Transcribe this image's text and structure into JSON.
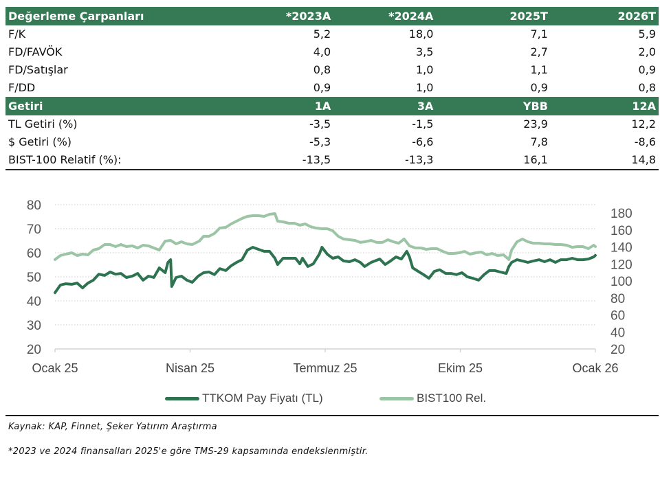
{
  "table": {
    "clipped_top_row": [
      "",
      "",
      "",
      ""
    ],
    "valuation_header": [
      "Değerleme Çarpanları",
      "*2023A",
      "*2024A",
      "2025T",
      "2026T"
    ],
    "valuation_rows": [
      [
        "F/K",
        "5,2",
        "18,0",
        "7,1",
        "5,9"
      ],
      [
        "FD/FAVÖK",
        "4,0",
        "3,5",
        "2,7",
        "2,0"
      ],
      [
        "FD/Satışlar",
        "0,8",
        "1,0",
        "1,1",
        "0,9"
      ],
      [
        "F/DD",
        "0,9",
        "1,0",
        "0,9",
        "0,8"
      ]
    ],
    "return_header": [
      "Getiri",
      "1A",
      "3A",
      "YBB",
      "12A"
    ],
    "return_rows": [
      [
        "TL Getiri (%)",
        "-3,5",
        "-1,5",
        "23,9",
        "12,2"
      ],
      [
        "$ Getiri (%)",
        "-5,3",
        "-6,6",
        "7,8",
        "-8,6"
      ],
      [
        "BIST-100 Relatif (%):",
        "-13,5",
        "-13,3",
        "16,1",
        "14,8"
      ]
    ],
    "header_color": "#357a55"
  },
  "chart_data": {
    "type": "line",
    "title": "",
    "xlabel": "",
    "ylabel": "",
    "x_tick_labels": [
      "Ocak 25",
      "Nisan 25",
      "Temmuz 25",
      "Ekim 25",
      "Ocak 26"
    ],
    "x_tick_positions": [
      0,
      0.25,
      0.5,
      0.75,
      1.0
    ],
    "x_range": [
      0,
      1.0
    ],
    "y_left": {
      "ticks": [
        20,
        30,
        40,
        50,
        60,
        70,
        80
      ],
      "range": [
        20,
        80
      ]
    },
    "y_right": {
      "ticks": [
        20,
        40,
        60,
        80,
        100,
        120,
        140,
        160,
        180
      ],
      "range": [
        20,
        180
      ]
    },
    "grid": true,
    "legend_position": "bottom",
    "series": [
      {
        "name": "TTKOM Pay Fiyatı (TL)",
        "axis": "left",
        "color": "#2e7350",
        "x": [
          0,
          0.01,
          0.02,
          0.031,
          0.041,
          0.051,
          0.061,
          0.071,
          0.081,
          0.092,
          0.102,
          0.112,
          0.122,
          0.132,
          0.143,
          0.153,
          0.163,
          0.173,
          0.183,
          0.193,
          0.204,
          0.209,
          0.214,
          0.216,
          0.224,
          0.234,
          0.244,
          0.254,
          0.265,
          0.275,
          0.285,
          0.295,
          0.305,
          0.316,
          0.326,
          0.336,
          0.346,
          0.356,
          0.366,
          0.377,
          0.387,
          0.397,
          0.407,
          0.412,
          0.422,
          0.433,
          0.445,
          0.453,
          0.458,
          0.468,
          0.478,
          0.489,
          0.494,
          0.504,
          0.514,
          0.524,
          0.534,
          0.545,
          0.555,
          0.565,
          0.573,
          0.585,
          0.601,
          0.611,
          0.621,
          0.631,
          0.641,
          0.651,
          0.656,
          0.662,
          0.672,
          0.682,
          0.692,
          0.702,
          0.712,
          0.723,
          0.733,
          0.743,
          0.753,
          0.763,
          0.773,
          0.784,
          0.794,
          0.804,
          0.814,
          0.824,
          0.835,
          0.84,
          0.845,
          0.855,
          0.865,
          0.875,
          0.885,
          0.896,
          0.906,
          0.916,
          0.926,
          0.936,
          0.947,
          0.957,
          0.967,
          0.977,
          0.987,
          0.997,
          1.0
        ],
        "values": [
          43.4,
          46.6,
          47.1,
          46.9,
          47.4,
          45.4,
          47.4,
          48.6,
          51.1,
          50.6,
          52.0,
          51.1,
          51.4,
          49.7,
          50.3,
          51.4,
          48.6,
          50.3,
          49.7,
          53.7,
          51.7,
          56.0,
          57.1,
          46.0,
          49.7,
          50.3,
          48.6,
          47.7,
          50.3,
          51.7,
          52.0,
          50.9,
          53.4,
          52.6,
          54.6,
          56.0,
          57.1,
          61.1,
          62.3,
          61.4,
          60.6,
          60.6,
          57.7,
          55.1,
          57.7,
          57.7,
          57.7,
          55.4,
          57.7,
          54.3,
          55.4,
          59.4,
          62.3,
          59.4,
          57.7,
          58.3,
          56.6,
          56.3,
          57.1,
          56.0,
          54.3,
          56.0,
          57.4,
          55.1,
          56.6,
          58.3,
          57.4,
          60.6,
          58.3,
          53.7,
          52.3,
          50.9,
          49.4,
          52.3,
          52.9,
          51.4,
          51.4,
          50.9,
          51.7,
          50.0,
          49.4,
          48.6,
          50.9,
          52.6,
          52.6,
          52.0,
          51.4,
          54.3,
          56.0,
          57.1,
          56.6,
          56.0,
          56.6,
          57.1,
          56.3,
          57.1,
          56.0,
          57.1,
          57.1,
          57.7,
          57.1,
          57.1,
          57.4,
          58.3,
          58.9
        ]
      },
      {
        "name": "BIST100 Rel.",
        "axis": "right",
        "color": "#9cc5a6",
        "x": [
          0,
          0.01,
          0.02,
          0.031,
          0.041,
          0.051,
          0.061,
          0.071,
          0.081,
          0.092,
          0.102,
          0.112,
          0.122,
          0.132,
          0.143,
          0.153,
          0.163,
          0.173,
          0.183,
          0.193,
          0.204,
          0.214,
          0.224,
          0.234,
          0.244,
          0.254,
          0.267,
          0.275,
          0.285,
          0.295,
          0.305,
          0.316,
          0.326,
          0.336,
          0.346,
          0.356,
          0.366,
          0.377,
          0.387,
          0.397,
          0.407,
          0.412,
          0.422,
          0.433,
          0.443,
          0.453,
          0.463,
          0.473,
          0.483,
          0.494,
          0.504,
          0.514,
          0.524,
          0.534,
          0.545,
          0.555,
          0.565,
          0.573,
          0.585,
          0.595,
          0.606,
          0.616,
          0.626,
          0.636,
          0.646,
          0.656,
          0.667,
          0.677,
          0.687,
          0.697,
          0.707,
          0.718,
          0.728,
          0.738,
          0.748,
          0.758,
          0.768,
          0.779,
          0.789,
          0.799,
          0.809,
          0.819,
          0.83,
          0.84,
          0.845,
          0.855,
          0.865,
          0.875,
          0.885,
          0.896,
          0.906,
          0.916,
          0.926,
          0.936,
          0.947,
          0.957,
          0.967,
          0.977,
          0.987,
          0.997,
          1.0
        ],
        "values": [
          125.1,
          129.9,
          131.5,
          133.1,
          129.9,
          131.5,
          130.7,
          136.4,
          138.0,
          142.8,
          142.8,
          140.4,
          142.8,
          140.4,
          141.2,
          138.8,
          142.0,
          141.2,
          138.8,
          136.4,
          146.9,
          147.7,
          143.6,
          146.1,
          143.6,
          142.8,
          146.9,
          152.5,
          152.5,
          155.8,
          162.2,
          163.0,
          167.1,
          170.3,
          173.5,
          176.0,
          176.8,
          176.8,
          176.0,
          178.4,
          179.2,
          170.3,
          169.5,
          167.9,
          167.9,
          165.5,
          167.1,
          163.8,
          162.2,
          161.4,
          161.4,
          159.0,
          152.5,
          149.3,
          148.5,
          147.7,
          145.3,
          146.1,
          147.7,
          145.3,
          145.3,
          148.5,
          146.1,
          144.4,
          149.3,
          141.2,
          138.8,
          138.8,
          137.2,
          138.0,
          138.0,
          134.7,
          132.3,
          132.3,
          133.1,
          134.7,
          131.5,
          133.1,
          133.9,
          130.7,
          132.3,
          129.9,
          130.7,
          125.1,
          136.4,
          146.1,
          149.3,
          146.1,
          144.4,
          144.4,
          143.6,
          143.6,
          142.8,
          142.8,
          142.0,
          139.6,
          140.4,
          140.4,
          138.0,
          142.0,
          140.4
        ]
      }
    ]
  },
  "legend": {
    "items": [
      {
        "label": "TTKOM Pay Fiyatı (TL)",
        "color": "#2e7350"
      },
      {
        "label": "BIST100 Rel.",
        "color": "#9cc5a6"
      }
    ]
  },
  "footnotes": {
    "source": "Kaynak: KAP, Finnet, Şeker Yatırım Araştırma",
    "note": "*2023 ve 2024 finansalları 2025'e göre TMS-29 kapsamında endekslenmiştir."
  }
}
